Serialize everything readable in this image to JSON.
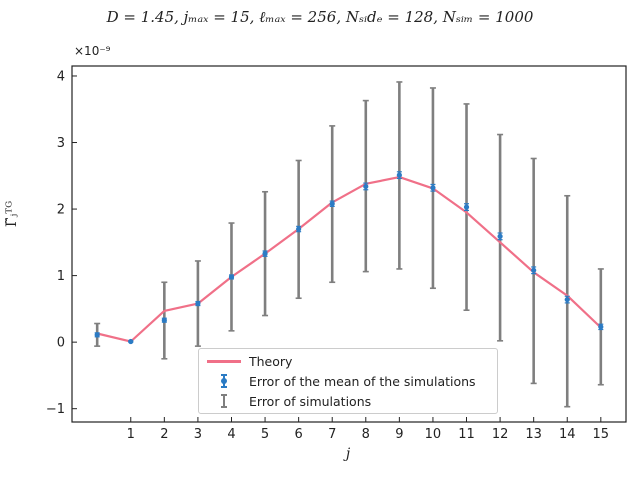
{
  "chart_data": {
    "type": "line",
    "title": "D = 1.45,  j_max = 15,  ℓ_max = 256,  N_side = 128,  N_sim = 1000",
    "title_display": "D = 1.45,  jₘₐₓ = 15,  ℓₘₐₓ = 256,  Nₛᵢdₑ = 128,  Nₛᵢₘ = 1000",
    "xlabel": "j",
    "ylabel": "Γ̃ⱼᵀᴳ",
    "y_offset_label": "×10⁻⁹",
    "x_ticks": [
      1,
      2,
      3,
      4,
      5,
      6,
      7,
      8,
      9,
      10,
      11,
      12,
      13,
      14,
      15
    ],
    "y_ticks": [
      -1,
      0,
      1,
      2,
      3,
      4
    ],
    "xlim": [
      -0.75,
      15.75
    ],
    "ylim": [
      -1.2,
      4.15
    ],
    "grid": false,
    "legend_position": "lower center",
    "x": [
      0,
      1,
      2,
      3,
      4,
      5,
      6,
      7,
      8,
      9,
      10,
      11,
      12,
      13,
      14,
      15
    ],
    "series": [
      {
        "name": "Theory",
        "kind": "line",
        "color": "#f07088",
        "values": [
          0.13,
          0.01,
          0.47,
          0.58,
          0.98,
          1.33,
          1.7,
          2.1,
          2.38,
          2.48,
          2.31,
          1.95,
          1.5,
          1.05,
          0.7,
          0.22
        ]
      },
      {
        "name": "Error of the mean of the simulations",
        "kind": "errorbar",
        "color": "#2b7bc4",
        "values": [
          0.11,
          0.01,
          0.33,
          0.58,
          0.98,
          1.33,
          1.7,
          2.08,
          2.34,
          2.51,
          2.32,
          2.03,
          1.59,
          1.08,
          0.64,
          0.23
        ],
        "err": [
          0.03,
          0.01,
          0.03,
          0.03,
          0.03,
          0.04,
          0.04,
          0.04,
          0.05,
          0.05,
          0.05,
          0.05,
          0.05,
          0.05,
          0.05,
          0.04
        ]
      },
      {
        "name": "Error of simulations",
        "kind": "errorbar",
        "color": "#7f7f7f",
        "center": [
          0.11,
          0.01,
          0.33,
          0.58,
          0.98,
          1.33,
          1.7,
          2.08,
          2.34,
          2.51,
          2.32,
          2.03,
          1.57,
          1.08,
          0.62,
          0.23
        ],
        "low": [
          -0.06,
          0.01,
          -0.25,
          -0.06,
          0.17,
          0.4,
          0.66,
          0.9,
          1.06,
          1.1,
          0.81,
          0.48,
          0.02,
          -0.62,
          -0.97,
          -0.64
        ],
        "high": [
          0.28,
          0.01,
          0.9,
          1.22,
          1.79,
          2.26,
          2.73,
          3.25,
          3.63,
          3.91,
          3.82,
          3.58,
          3.12,
          2.76,
          2.2,
          1.1
        ]
      }
    ]
  }
}
